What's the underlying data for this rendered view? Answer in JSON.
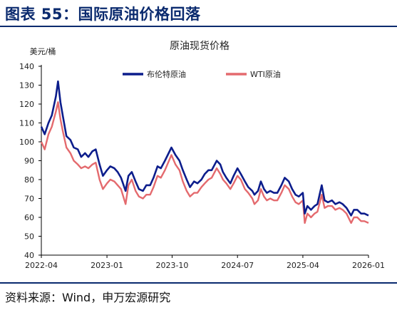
{
  "figure_title": "图表 55：国际原油价格回落",
  "source": "资料来源：Wind，申万宏源研究",
  "colors": {
    "brent": "#0c1d8c",
    "wti": "#e46a6e",
    "axis": "#000000",
    "rule": "#0a2a6e"
  },
  "chart_data": {
    "type": "line",
    "title": "原油现货价格",
    "ylabel": "美元/桶",
    "xlabel": "",
    "ylim": [
      40,
      140
    ],
    "yticks": [
      40,
      50,
      60,
      70,
      80,
      90,
      100,
      110,
      120,
      130,
      140
    ],
    "xlim": [
      "2022-04-01",
      "2026-01-01"
    ],
    "xticks": [
      "2022-04",
      "2023-01",
      "2023-10",
      "2024-07",
      "2025-04",
      "2026-01"
    ],
    "grid": false,
    "legend": "top-center",
    "series": [
      {
        "name": "布伦特原油",
        "dates": [
          "2022-04-01",
          "2022-04-15",
          "2022-05-01",
          "2022-05-15",
          "2022-06-01",
          "2022-06-10",
          "2022-06-20",
          "2022-07-01",
          "2022-07-15",
          "2022-08-01",
          "2022-08-15",
          "2022-09-01",
          "2022-09-15",
          "2022-10-01",
          "2022-10-15",
          "2022-11-01",
          "2022-11-15",
          "2022-12-01",
          "2022-12-15",
          "2023-01-01",
          "2023-01-15",
          "2023-02-01",
          "2023-02-15",
          "2023-03-01",
          "2023-03-20",
          "2023-04-01",
          "2023-04-15",
          "2023-05-01",
          "2023-05-15",
          "2023-06-01",
          "2023-06-15",
          "2023-07-01",
          "2023-07-15",
          "2023-08-01",
          "2023-08-15",
          "2023-09-01",
          "2023-09-28",
          "2023-10-15",
          "2023-11-01",
          "2023-11-15",
          "2023-12-01",
          "2023-12-15",
          "2024-01-01",
          "2024-01-15",
          "2024-02-01",
          "2024-02-15",
          "2024-03-01",
          "2024-03-15",
          "2024-04-05",
          "2024-04-20",
          "2024-05-01",
          "2024-05-15",
          "2024-06-01",
          "2024-06-15",
          "2024-07-01",
          "2024-07-15",
          "2024-08-01",
          "2024-08-15",
          "2024-09-01",
          "2024-09-10",
          "2024-09-25",
          "2024-10-07",
          "2024-10-20",
          "2024-11-01",
          "2024-11-15",
          "2024-12-01",
          "2024-12-15",
          "2025-01-01",
          "2025-01-15",
          "2025-02-01",
          "2025-02-15",
          "2025-03-01",
          "2025-03-15",
          "2025-04-01",
          "2025-04-09",
          "2025-04-20",
          "2025-05-05",
          "2025-05-20",
          "2025-06-01",
          "2025-06-19",
          "2025-07-01",
          "2025-07-15",
          "2025-08-01",
          "2025-08-15",
          "2025-09-01",
          "2025-09-15",
          "2025-10-01",
          "2025-10-20",
          "2025-11-01",
          "2025-11-15",
          "2025-12-01",
          "2025-12-15",
          "2026-01-01"
        ],
        "values": [
          108,
          104,
          110,
          114,
          124,
          132,
          121,
          113,
          103,
          101,
          97,
          96,
          92,
          94,
          92,
          95,
          96,
          88,
          82,
          85,
          87,
          86,
          84,
          81,
          74,
          82,
          84,
          79,
          75,
          74,
          77,
          77,
          81,
          87,
          86,
          90,
          97,
          93,
          90,
          85,
          80,
          76,
          79,
          78,
          80,
          83,
          85,
          85,
          90,
          88,
          84,
          81,
          78,
          82,
          86,
          83,
          79,
          76,
          74,
          72,
          74,
          79,
          75,
          73,
          74,
          73,
          73,
          77,
          81,
          79,
          75,
          72,
          71,
          73,
          62,
          66,
          64,
          66,
          67,
          77,
          69,
          68,
          69,
          67,
          68,
          67,
          65,
          61,
          64,
          64,
          62,
          62,
          61
        ]
      },
      {
        "name": "WTI原油",
        "dates": [
          "2022-04-01",
          "2022-04-15",
          "2022-05-01",
          "2022-05-15",
          "2022-06-01",
          "2022-06-10",
          "2022-06-20",
          "2022-07-01",
          "2022-07-15",
          "2022-08-01",
          "2022-08-15",
          "2022-09-01",
          "2022-09-15",
          "2022-10-01",
          "2022-10-15",
          "2022-11-01",
          "2022-11-15",
          "2022-12-01",
          "2022-12-15",
          "2023-01-01",
          "2023-01-15",
          "2023-02-01",
          "2023-02-15",
          "2023-03-01",
          "2023-03-20",
          "2023-04-01",
          "2023-04-15",
          "2023-05-01",
          "2023-05-15",
          "2023-06-01",
          "2023-06-15",
          "2023-07-01",
          "2023-07-15",
          "2023-08-01",
          "2023-08-15",
          "2023-09-01",
          "2023-09-28",
          "2023-10-15",
          "2023-11-01",
          "2023-11-15",
          "2023-12-01",
          "2023-12-15",
          "2024-01-01",
          "2024-01-15",
          "2024-02-01",
          "2024-02-15",
          "2024-03-01",
          "2024-03-15",
          "2024-04-05",
          "2024-04-20",
          "2024-05-01",
          "2024-05-15",
          "2024-06-01",
          "2024-06-15",
          "2024-07-01",
          "2024-07-15",
          "2024-08-01",
          "2024-08-15",
          "2024-09-01",
          "2024-09-10",
          "2024-09-25",
          "2024-10-07",
          "2024-10-20",
          "2024-11-01",
          "2024-11-15",
          "2024-12-01",
          "2024-12-15",
          "2025-01-01",
          "2025-01-15",
          "2025-02-01",
          "2025-02-15",
          "2025-03-01",
          "2025-03-15",
          "2025-04-01",
          "2025-04-09",
          "2025-04-20",
          "2025-05-05",
          "2025-05-20",
          "2025-06-01",
          "2025-06-19",
          "2025-07-01",
          "2025-07-15",
          "2025-08-01",
          "2025-08-15",
          "2025-09-01",
          "2025-09-15",
          "2025-10-01",
          "2025-10-20",
          "2025-11-01",
          "2025-11-15",
          "2025-12-01",
          "2025-12-15",
          "2026-01-01"
        ],
        "values": [
          100,
          96,
          104,
          108,
          116,
          121,
          112,
          105,
          97,
          94,
          90,
          88,
          86,
          87,
          86,
          88,
          89,
          80,
          75,
          78,
          80,
          79,
          77,
          75,
          67,
          77,
          80,
          74,
          71,
          70,
          72,
          72,
          76,
          82,
          81,
          85,
          93,
          88,
          85,
          79,
          74,
          71,
          73,
          73,
          76,
          78,
          80,
          81,
          86,
          83,
          80,
          78,
          75,
          78,
          82,
          80,
          75,
          73,
          70,
          67,
          69,
          75,
          71,
          69,
          70,
          69,
          69,
          73,
          77,
          75,
          71,
          68,
          67,
          69,
          57,
          62,
          60,
          62,
          63,
          72,
          65,
          66,
          66,
          64,
          65,
          64,
          62,
          57,
          60,
          60,
          58,
          58,
          57
        ]
      }
    ]
  }
}
